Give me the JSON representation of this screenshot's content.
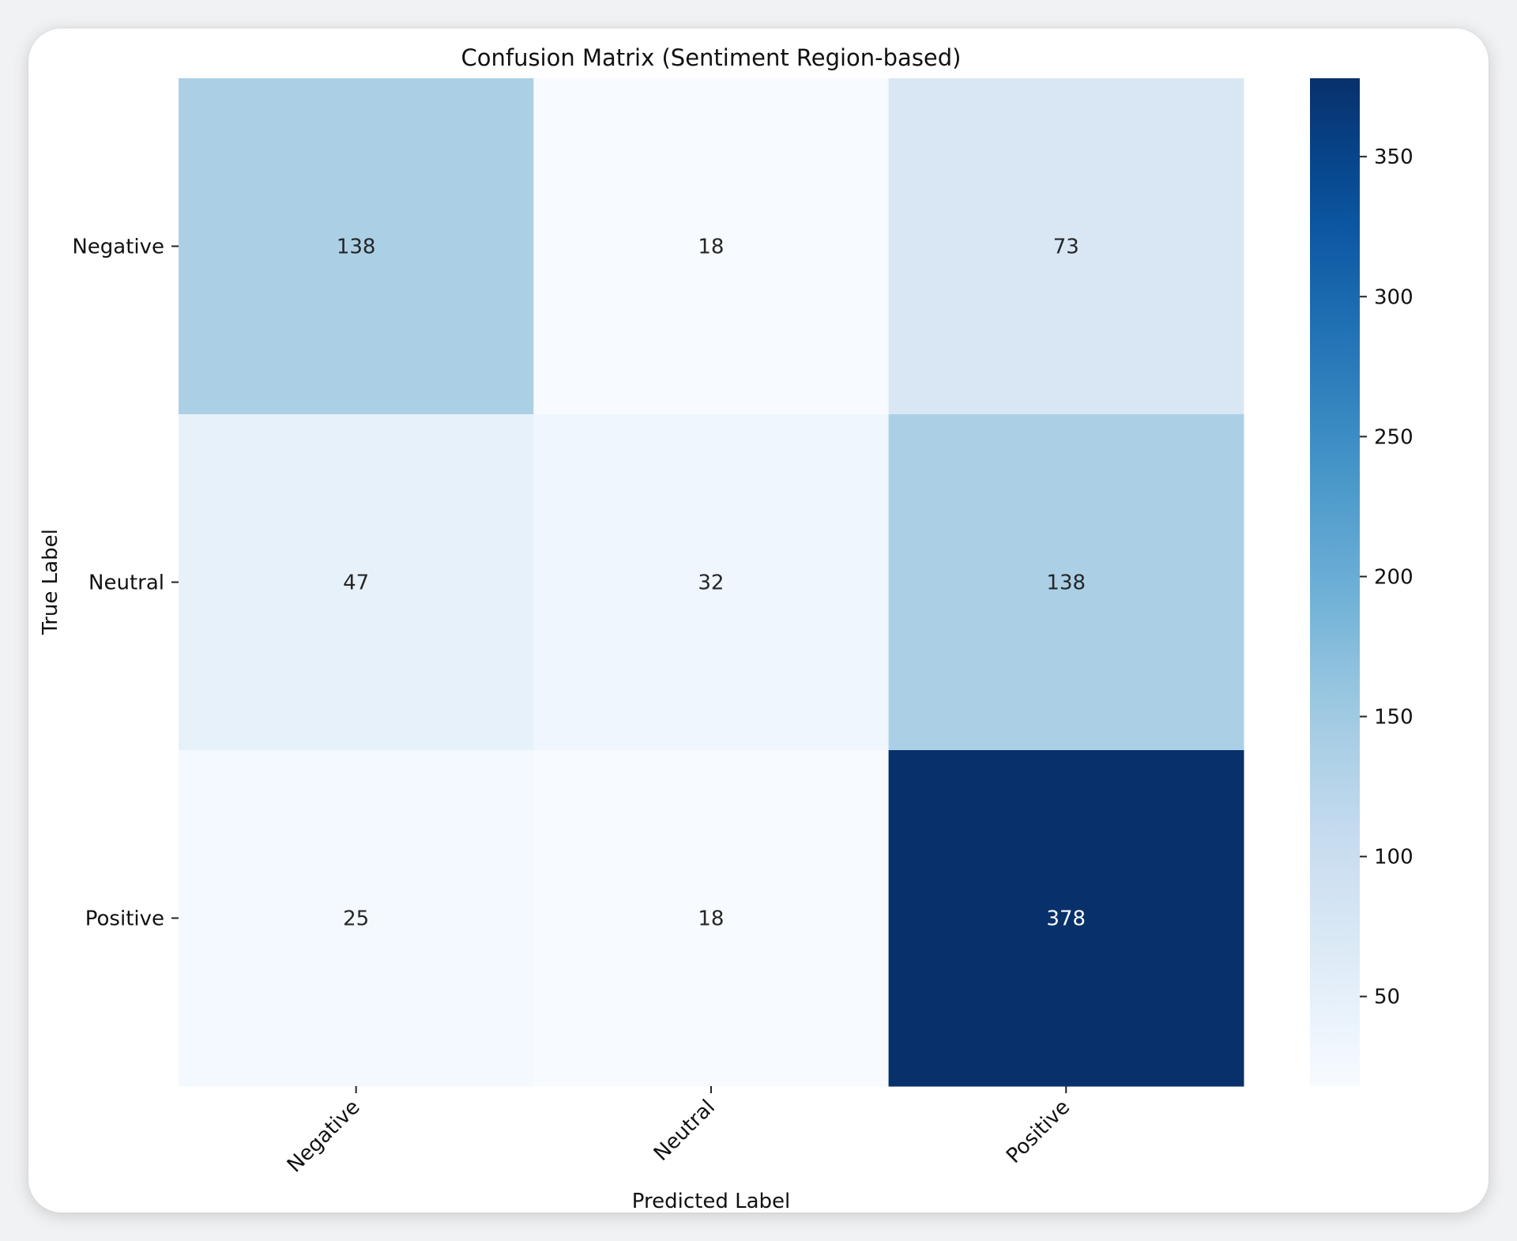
{
  "chart_data": {
    "type": "heatmap",
    "title": "Confusion Matrix (Sentiment Region-based)",
    "xlabel": "Predicted Label",
    "ylabel": "True Label",
    "x_categories": [
      "Negative",
      "Neutral",
      "Positive"
    ],
    "y_categories": [
      "Negative",
      "Neutral",
      "Positive"
    ],
    "values": [
      [
        138,
        18,
        73
      ],
      [
        47,
        32,
        138
      ],
      [
        25,
        18,
        378
      ]
    ],
    "colormap": "Blues",
    "color_range": [
      18,
      378
    ],
    "colorbar_ticks": [
      50,
      100,
      150,
      200,
      250,
      300,
      350
    ],
    "grid": false,
    "annotations": true
  }
}
